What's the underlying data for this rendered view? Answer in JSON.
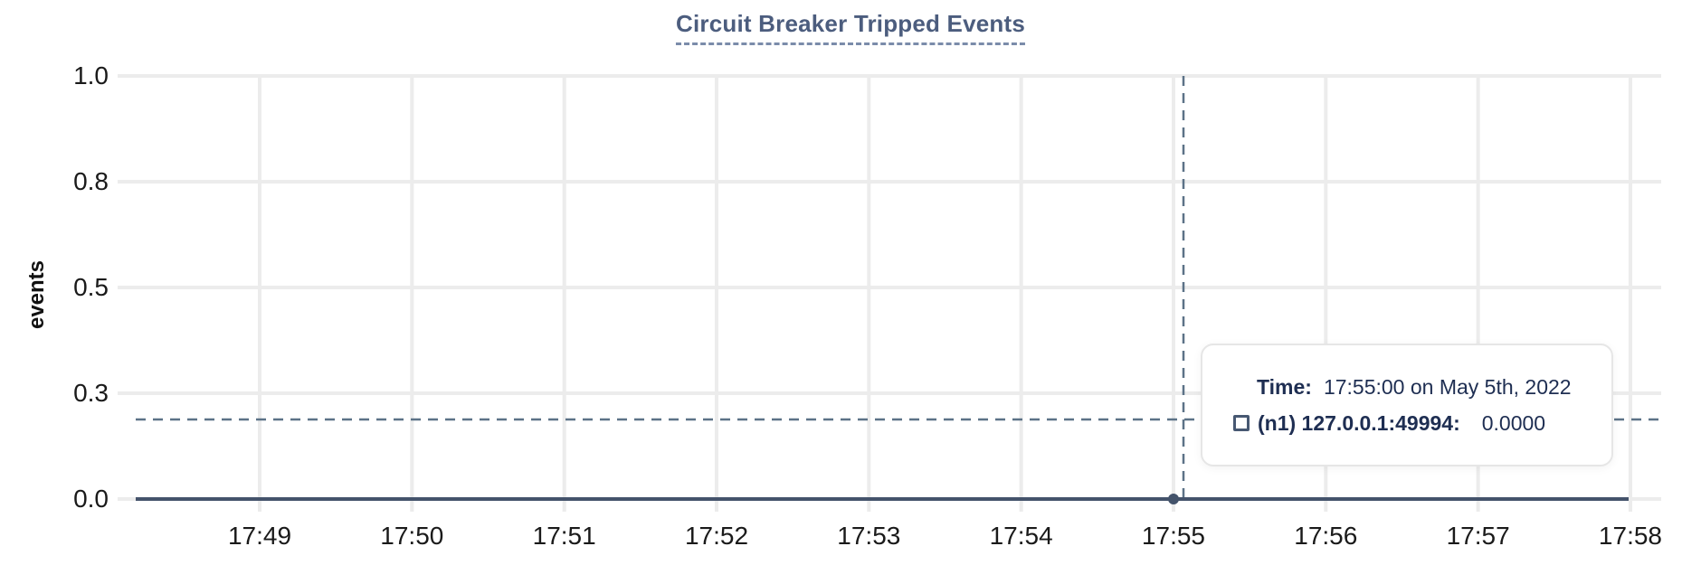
{
  "title": "Circuit Breaker Tripped Events",
  "y_axis": {
    "label": "events",
    "ticks": [
      {
        "label": "1.0",
        "value": 1.0
      },
      {
        "label": "0.8",
        "value": 0.75
      },
      {
        "label": "0.5",
        "value": 0.5
      },
      {
        "label": "0.3",
        "value": 0.25
      },
      {
        "label": "0.0",
        "value": 0.0
      }
    ]
  },
  "x_axis": {
    "ticks": [
      "17:49",
      "17:50",
      "17:51",
      "17:52",
      "17:53",
      "17:54",
      "17:55",
      "17:56",
      "17:57",
      "17:58"
    ]
  },
  "tooltip": {
    "time_label": "Time:",
    "time_value": "17:55:00 on May 5th, 2022",
    "series_label": "(n1) 127.0.0.1:49994:",
    "series_value": "0.0000"
  },
  "colors": {
    "title_text": "#4c5d7e",
    "title_underline": "#7b8caa",
    "grid": "#ececec",
    "tick_text": "#1a1a1a",
    "series_line": "#44536b",
    "crosshair": "#5c7287",
    "tooltip_text": "#1e2e52",
    "background": "#ffffff"
  },
  "chart_data": {
    "type": "line",
    "title": "Circuit Breaker Tripped Events",
    "xlabel": "",
    "ylabel": "events",
    "ylim": [
      0.0,
      1.0
    ],
    "y_tick_values": [
      0.0,
      0.25,
      0.5,
      0.75,
      1.0
    ],
    "y_tick_labels": [
      "0.0",
      "0.3",
      "0.5",
      "0.8",
      "1.0"
    ],
    "x": [
      "17:49",
      "17:50",
      "17:51",
      "17:52",
      "17:53",
      "17:54",
      "17:55",
      "17:56",
      "17:57",
      "17:58"
    ],
    "series": [
      {
        "name": "(n1) 127.0.0.1:49994",
        "values": [
          0,
          0,
          0,
          0,
          0,
          0,
          0,
          0,
          0,
          0
        ]
      }
    ],
    "grid": true,
    "legend_position": "tooltip",
    "hovered_point": {
      "time": "17:55:00 on May 5th, 2022",
      "x_tick": "17:55",
      "series": "(n1) 127.0.0.1:49994",
      "value": 0.0,
      "value_display": "0.0000"
    }
  }
}
